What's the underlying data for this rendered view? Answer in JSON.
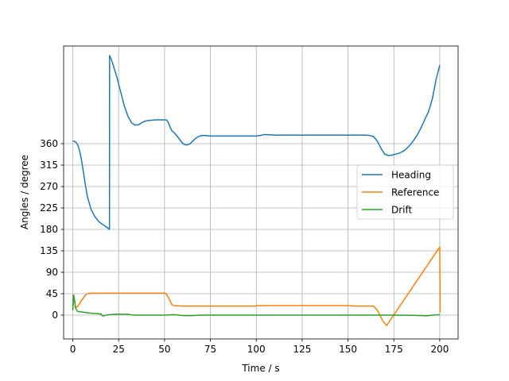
{
  "chart_data": {
    "type": "line",
    "xlabel": "Time / s",
    "ylabel": "Angles / degree",
    "xlim": [
      -5,
      210
    ],
    "ylim": [
      -50,
      565
    ],
    "xticks": [
      0,
      25,
      50,
      75,
      100,
      125,
      150,
      175,
      200
    ],
    "yticks": [
      0,
      45,
      90,
      135,
      180,
      225,
      270,
      315,
      360
    ],
    "grid": true,
    "legend_position": "center-right",
    "series": [
      {
        "name": "Heading",
        "color": "#1f77b4",
        "x": [
          0,
          1,
          2,
          3,
          4,
          5,
          6,
          7,
          8,
          10,
          12,
          14,
          16,
          18,
          20,
          20.05,
          21,
          22,
          24,
          26,
          28,
          30,
          32,
          34,
          36,
          38,
          40,
          42,
          45,
          48,
          51,
          52,
          53,
          54,
          55,
          56,
          58,
          60,
          62,
          64,
          66,
          68,
          70,
          72,
          75,
          80,
          90,
          100,
          102,
          104,
          106,
          110,
          130,
          150,
          155,
          160,
          162,
          164,
          166,
          168,
          170,
          172,
          174,
          176,
          178,
          180,
          182,
          184,
          186,
          188,
          190,
          192,
          194,
          196,
          198,
          200
        ],
        "y": [
          365,
          365,
          362,
          355,
          340,
          320,
          295,
          270,
          248,
          222,
          207,
          197,
          191,
          186,
          180,
          545,
          537,
          525,
          500,
          470,
          440,
          418,
          404,
          399,
          400,
          405,
          408,
          409,
          410,
          410,
          410,
          405,
          395,
          387,
          384,
          380,
          370,
          360,
          357,
          360,
          368,
          374,
          377,
          377,
          376,
          376,
          376,
          376,
          377,
          379,
          379,
          378,
          378,
          378,
          378,
          378,
          377,
          375,
          365,
          350,
          338,
          335,
          336,
          338,
          340,
          344,
          350,
          358,
          368,
          380,
          395,
          412,
          428,
          455,
          495,
          525
        ]
      },
      {
        "name": "Reference",
        "color": "#ff7f0e",
        "x": [
          0,
          0.6,
          1.5,
          3,
          5,
          7,
          8,
          10,
          20,
          40,
          50,
          50.6,
          52,
          53,
          54,
          55,
          60,
          80,
          100,
          100.1,
          110,
          130,
          150,
          152,
          153,
          160,
          164,
          166,
          168,
          169,
          171,
          200,
          200.2
        ],
        "y": [
          10,
          42,
          15,
          20,
          32,
          43,
          45,
          46,
          46,
          46,
          46,
          46,
          38,
          30,
          22,
          20,
          19,
          19,
          19,
          20,
          20,
          20,
          20,
          19.5,
          19,
          19,
          19,
          10,
          -5,
          -12,
          -22,
          143,
          5
        ]
      },
      {
        "name": "Drift",
        "color": "#2ca02c",
        "x": [
          0,
          0.3,
          0.7,
          1,
          1.5,
          2.5,
          4,
          6,
          8,
          10,
          14,
          15.5,
          16,
          16.5,
          18,
          20,
          25,
          28,
          30,
          32,
          35,
          40,
          45,
          50,
          55,
          58,
          60,
          62,
          65,
          70,
          80,
          100,
          120,
          140,
          160,
          175,
          185,
          190,
          193,
          195,
          198,
          200
        ],
        "y": [
          10,
          42,
          36,
          30,
          15,
          8,
          7,
          6,
          5,
          4,
          3,
          2,
          -1,
          -2,
          0,
          1,
          2,
          1.5,
          2,
          0.5,
          0,
          0,
          0,
          0,
          1,
          0,
          -1,
          -1,
          -1,
          0,
          0,
          0,
          0,
          0,
          0,
          0,
          -0.5,
          -1,
          -1.5,
          -0.5,
          0.5,
          1
        ]
      }
    ]
  }
}
